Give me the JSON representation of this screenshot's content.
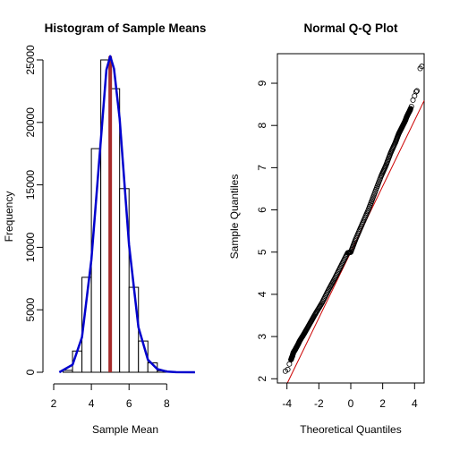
{
  "chart_data": [
    {
      "type": "bar",
      "title": "Histogram of Sample Means",
      "xlabel": "Sample Mean",
      "ylabel": "Frequency",
      "xlim": [
        2,
        9.6
      ],
      "ylim": [
        0,
        25500
      ],
      "x_ticks": [
        2,
        4,
        6,
        8
      ],
      "y_ticks": [
        0,
        5000,
        10000,
        15000,
        20000,
        25000
      ],
      "bins": [
        {
          "from": 2.5,
          "to": 3.0,
          "count": 150
        },
        {
          "from": 3.0,
          "to": 3.5,
          "count": 1700
        },
        {
          "from": 3.5,
          "to": 4.0,
          "count": 7600
        },
        {
          "from": 4.0,
          "to": 4.5,
          "count": 17900
        },
        {
          "from": 4.5,
          "to": 5.0,
          "count": 25000
        },
        {
          "from": 5.0,
          "to": 5.5,
          "count": 22700
        },
        {
          "from": 5.5,
          "to": 6.0,
          "count": 14700
        },
        {
          "from": 6.0,
          "to": 6.5,
          "count": 6800
        },
        {
          "from": 6.5,
          "to": 7.0,
          "count": 2500
        },
        {
          "from": 7.0,
          "to": 7.5,
          "count": 750
        },
        {
          "from": 7.5,
          "to": 8.0,
          "count": 120
        }
      ],
      "density_curve": {
        "color": "#0000cd",
        "x": [
          2.3,
          3.0,
          3.5,
          4.0,
          4.5,
          4.8,
          5.0,
          5.2,
          5.5,
          6.0,
          6.5,
          7.0,
          7.5,
          8.0,
          8.5,
          9.5
        ],
        "y": [
          0,
          600,
          2800,
          9000,
          18500,
          24200,
          25300,
          24300,
          20300,
          10200,
          3600,
          1000,
          250,
          60,
          10,
          0
        ]
      },
      "mean_line": {
        "x": 5.0,
        "color": "#a52a2a"
      }
    },
    {
      "type": "scatter",
      "title": "Normal Q-Q Plot",
      "xlabel": "Theoretical Quantiles",
      "ylabel": "Sample Quantiles",
      "xlim": [
        -4.6,
        4.6
      ],
      "ylim": [
        1.9,
        9.7
      ],
      "x_ticks": [
        -4,
        -2,
        0,
        2,
        4
      ],
      "y_ticks": [
        2,
        3,
        4,
        5,
        6,
        7,
        8,
        9
      ],
      "points": {
        "x": [
          -4.1,
          -3.95,
          -3.85,
          -3.75,
          -3.7,
          -3.65,
          -3.6,
          -3.5,
          -3.4,
          -3.3,
          -3.2,
          -3.0,
          -2.8,
          -2.5,
          -2.2,
          -1.8,
          -1.4,
          -1.0,
          -0.6,
          -0.2,
          0.0,
          0.3,
          0.7,
          1.1,
          1.5,
          1.9,
          2.2,
          2.5,
          2.8,
          3.0,
          3.2,
          3.4,
          3.5,
          3.6,
          3.7,
          3.75,
          3.8,
          3.9,
          4.0,
          4.1,
          4.15,
          4.35,
          4.45
        ],
        "y": [
          2.18,
          2.22,
          2.35,
          2.45,
          2.5,
          2.55,
          2.62,
          2.68,
          2.75,
          2.82,
          2.9,
          3.02,
          3.15,
          3.35,
          3.55,
          3.8,
          4.1,
          4.38,
          4.68,
          4.98,
          5.0,
          5.3,
          5.65,
          6.0,
          6.4,
          6.8,
          7.05,
          7.35,
          7.6,
          7.8,
          7.95,
          8.1,
          8.2,
          8.28,
          8.35,
          8.4,
          8.45,
          8.6,
          8.7,
          8.8,
          8.82,
          9.35,
          9.4
        ]
      },
      "reference_line": {
        "intercept": 5.0,
        "slope": 0.78,
        "color": "#cc0000"
      }
    }
  ]
}
